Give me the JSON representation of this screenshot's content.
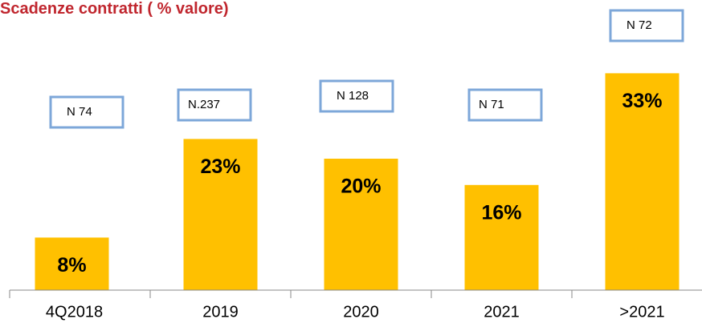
{
  "chart_data": {
    "type": "bar",
    "title": "Scadenze contratti  ( % valore)",
    "categories": [
      "4Q2018",
      "2019",
      "2020",
      "2021",
      ">2021"
    ],
    "values": [
      8,
      23,
      20,
      16,
      33
    ],
    "value_labels": [
      "8%",
      "23%",
      "20%",
      "16%",
      "33%"
    ],
    "color": "#ffc000",
    "annotations": [
      "N 74",
      "N.237",
      "N 128",
      "N 71",
      "N 72"
    ]
  }
}
